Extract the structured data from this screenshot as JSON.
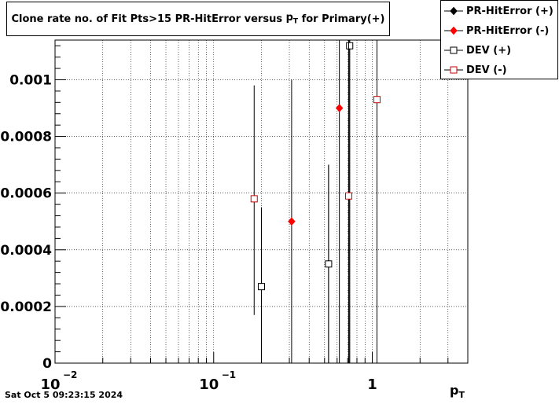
{
  "title_text": "Clone rate no. of Fit Pts>15 PR-HitError versus",
  "title_var": "p",
  "title_var_sub": "T",
  "title_suffix": "for Primary(+)",
  "timestamp": "Sat Oct  5 09:23:15 2024",
  "colors": {
    "plus": "#000000",
    "minus": "#ff0000",
    "dev_minus": "#cc0000"
  },
  "chart_data": {
    "type": "scatter",
    "title": "Clone rate no. of Fit Pts>15 PR-HitError versus pT for Primary(+)",
    "xlabel": "pT",
    "x_label_main": "p",
    "x_label_sub": "T",
    "ylabel": "",
    "x_scale": "log",
    "xlim": [
      0.01,
      4.0
    ],
    "ylim": [
      0,
      0.00114
    ],
    "grid": true,
    "legend_position": "top-right",
    "y_ticks": [
      {
        "value": 0,
        "label": "0"
      },
      {
        "value": 0.0002,
        "label": "0.0002"
      },
      {
        "value": 0.0004,
        "label": "0.0004"
      },
      {
        "value": 0.0006,
        "label": "0.0006"
      },
      {
        "value": 0.0008,
        "label": "0.0008"
      },
      {
        "value": 0.001,
        "label": "0.001"
      }
    ],
    "x_ticks": [
      {
        "value": 0.01,
        "base": "10",
        "exp": "−2"
      },
      {
        "value": 0.1,
        "base": "10",
        "exp": "−1"
      },
      {
        "value": 1,
        "base": "1",
        "exp": ""
      }
    ],
    "series": [
      {
        "name": "PR-HitError (+)",
        "marker": "filled-diamond",
        "color": "#000000",
        "points": [
          {
            "x": 0.2,
            "y": 0.00027,
            "ylo": 0.0,
            "yhi": 0.00055
          },
          {
            "x": 0.53,
            "y": 0.00035,
            "ylo": 0.0,
            "yhi": 0.0007
          },
          {
            "x": 0.72,
            "y": 0.00112,
            "ylo": 0.0,
            "yhi": 0.00114
          }
        ]
      },
      {
        "name": "PR-HitError (-)",
        "marker": "filled-diamond",
        "color": "#ff0000",
        "points": [
          {
            "x": 0.31,
            "y": 0.0005,
            "ylo": 0.0,
            "yhi": 0.001
          },
          {
            "x": 0.62,
            "y": 0.0009,
            "ylo": 0.0,
            "yhi": 0.00114
          }
        ]
      },
      {
        "name": "DEV (+)",
        "marker": "open-square",
        "color": "#000000",
        "points": [
          {
            "x": 0.2,
            "y": 0.00027,
            "ylo": 0.0,
            "yhi": 0.00055
          },
          {
            "x": 0.53,
            "y": 0.00035,
            "ylo": 0.0,
            "yhi": 0.0007
          },
          {
            "x": 0.72,
            "y": 0.00112,
            "ylo": 0.0,
            "yhi": 0.00114
          }
        ]
      },
      {
        "name": "DEV (-)",
        "marker": "open-square",
        "color": "#cc0000",
        "points": [
          {
            "x": 0.18,
            "y": 0.00058,
            "ylo": 0.00017,
            "yhi": 0.00098
          },
          {
            "x": 0.71,
            "y": 0.00059,
            "ylo": 0.0,
            "yhi": 0.00114
          },
          {
            "x": 1.07,
            "y": 0.00093,
            "ylo": 0.0,
            "yhi": 0.00114
          }
        ]
      }
    ]
  }
}
